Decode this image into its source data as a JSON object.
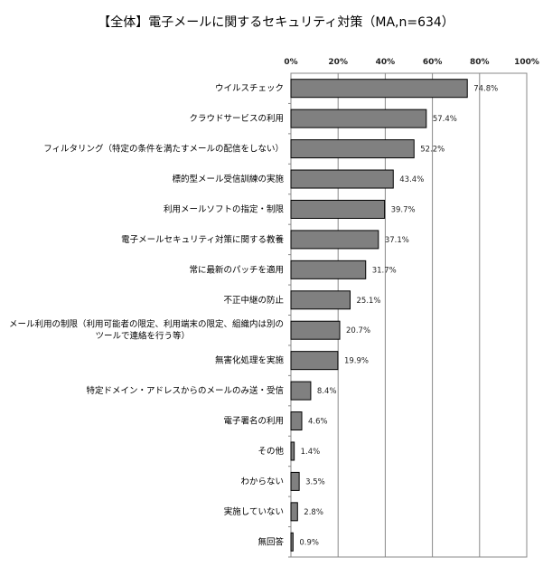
{
  "chart_data": {
    "type": "bar",
    "orientation": "horizontal",
    "title": "【全体】電子メールに関するセキュリティ対策（MA,n=634）",
    "categories": [
      "ウイルスチェック",
      "クラウドサービスの利用",
      "フィルタリング（特定の条件を満たすメールの配信をしない）",
      "標的型メール受信訓練の実施",
      "利用メールソフトの指定・制限",
      "電子メールセキュリティ対策に関する教養",
      "常に最新のパッチを適用",
      "不正中継の防止",
      "メール利用の制限（利用可能者の限定、利用端末の限定、組織内は別の\nツールで連絡を行う等）",
      "無害化処理を実施",
      "特定ドメイン・アドレスからのメールのみ送・受信",
      "電子署名の利用",
      "その他",
      "わからない",
      "実施していない",
      "無回答"
    ],
    "values": [
      74.8,
      57.4,
      52.2,
      43.4,
      39.7,
      37.1,
      31.7,
      25.1,
      20.7,
      19.9,
      8.4,
      4.6,
      1.4,
      3.5,
      2.8,
      0.9
    ],
    "value_labels": [
      "74.8%",
      "57.4%",
      "52.2%",
      "43.4%",
      "39.7%",
      "37.1%",
      "31.7%",
      "25.1%",
      "20.7%",
      "19.9%",
      "8.4%",
      "4.6%",
      "1.4%",
      "3.5%",
      "2.8%",
      "0.9%"
    ],
    "xlim": [
      0,
      100
    ],
    "x_ticks": [
      "0%",
      "20%",
      "40%",
      "60%",
      "80%",
      "100%"
    ],
    "x_axis_position": "top",
    "grid": true,
    "bar_color": "#808080",
    "bar_edge_color": "#000000"
  }
}
